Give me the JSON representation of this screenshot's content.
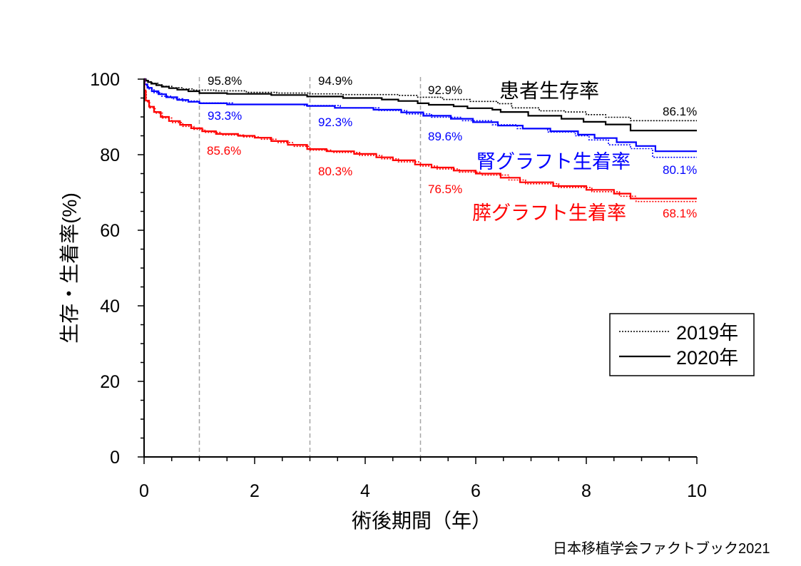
{
  "source": "日本移植学会ファクトブック2021",
  "chart_data": {
    "type": "line",
    "xlabel": "術後期間（年）",
    "ylabel": "生存・生着率(%)",
    "xlim": [
      0,
      10
    ],
    "ylim": [
      0,
      100
    ],
    "xticks": [
      0,
      2,
      4,
      6,
      8,
      10
    ],
    "yticks": [
      0,
      20,
      40,
      60,
      80,
      100
    ],
    "reference_lines_x": [
      1,
      3,
      5
    ],
    "legend": [
      "2019年",
      "2020年"
    ],
    "legend_position": "lower-right",
    "groups": [
      {
        "name": "患者生存率",
        "color": "#000000",
        "annotations": [
          {
            "x": 1,
            "label": "95.8%"
          },
          {
            "x": 3,
            "label": "94.9%"
          },
          {
            "x": 5,
            "label": "92.9%"
          },
          {
            "x": 10,
            "label": "86.1%"
          }
        ],
        "series": [
          {
            "points": [
              [
                0,
                100
              ],
              [
                0.03,
                99.7
              ],
              [
                0.08,
                99.3
              ],
              [
                0.15,
                98.9
              ],
              [
                0.25,
                98.5
              ],
              [
                0.35,
                98.1
              ],
              [
                0.5,
                97.7
              ],
              [
                0.7,
                97.4
              ],
              [
                0.9,
                97.1
              ],
              [
                1.3,
                96.9
              ],
              [
                1.85,
                96.5
              ],
              [
                2.4,
                96.3
              ],
              [
                3.0,
                96.1
              ],
              [
                3.6,
                95.9
              ],
              [
                4.6,
                95.7
              ],
              [
                4.95,
                95.2
              ],
              [
                5.4,
                94.6
              ],
              [
                5.9,
                94.1
              ],
              [
                6.4,
                93.5
              ],
              [
                6.65,
                92.4
              ],
              [
                7.15,
                91.6
              ],
              [
                7.6,
                91.3
              ],
              [
                8.0,
                90.6
              ],
              [
                8.35,
                89.9
              ],
              [
                8.8,
                89.0
              ],
              [
                10,
                89.0
              ]
            ]
          },
          {
            "points": [
              [
                0,
                100
              ],
              [
                0.03,
                99.6
              ],
              [
                0.07,
                99.2
              ],
              [
                0.13,
                98.8
              ],
              [
                0.22,
                98.4
              ],
              [
                0.32,
                98.0
              ],
              [
                0.45,
                97.6
              ],
              [
                0.6,
                97.2
              ],
              [
                0.8,
                96.8
              ],
              [
                1.0,
                96.3
              ],
              [
                1.5,
                96.1
              ],
              [
                2.3,
                95.8
              ],
              [
                2.95,
                95.4
              ],
              [
                3.6,
                95.0
              ],
              [
                4.3,
                94.6
              ],
              [
                4.6,
                94.2
              ],
              [
                4.95,
                93.6
              ],
              [
                5.15,
                93.2
              ],
              [
                5.6,
                92.8
              ],
              [
                5.85,
                92.3
              ],
              [
                6.3,
                91.9
              ],
              [
                6.45,
                91.3
              ],
              [
                6.95,
                90.3
              ],
              [
                7.55,
                89.5
              ],
              [
                7.95,
                88.7
              ],
              [
                8.35,
                88.0
              ],
              [
                8.8,
                86.4
              ],
              [
                10,
                86.4
              ]
            ]
          }
        ]
      },
      {
        "name": "腎グラフト生着率",
        "color": "#0000ff",
        "annotations": [
          {
            "x": 1,
            "label": "93.3%"
          },
          {
            "x": 3,
            "label": "92.3%"
          },
          {
            "x": 5,
            "label": "89.6%"
          },
          {
            "x": 10,
            "label": "80.1%"
          }
        ],
        "series": [
          {
            "points": [
              [
                0,
                100
              ],
              [
                0.02,
                98.3
              ],
              [
                0.08,
                97.4
              ],
              [
                0.18,
                96.4
              ],
              [
                0.32,
                95.5
              ],
              [
                0.5,
                94.8
              ],
              [
                0.7,
                94.2
              ],
              [
                1.0,
                93.7
              ],
              [
                1.6,
                93.3
              ],
              [
                2.9,
                93.0
              ],
              [
                3.55,
                92.4
              ],
              [
                4.25,
                91.7
              ],
              [
                4.75,
                90.8
              ],
              [
                5.2,
                89.9
              ],
              [
                5.75,
                89.0
              ],
              [
                6.3,
                87.9
              ],
              [
                6.75,
                86.9
              ],
              [
                7.3,
                86.0
              ],
              [
                7.8,
                85.0
              ],
              [
                8.05,
                83.9
              ],
              [
                8.4,
                82.6
              ],
              [
                8.8,
                81.6
              ],
              [
                9.2,
                79.3
              ],
              [
                10,
                79.3
              ]
            ]
          },
          {
            "points": [
              [
                0,
                100
              ],
              [
                0.01,
                98.6
              ],
              [
                0.06,
                97.7
              ],
              [
                0.14,
                96.8
              ],
              [
                0.26,
                96.0
              ],
              [
                0.4,
                95.2
              ],
              [
                0.6,
                94.5
              ],
              [
                0.8,
                94.0
              ],
              [
                1.0,
                93.6
              ],
              [
                1.5,
                93.3
              ],
              [
                2.95,
                92.9
              ],
              [
                3.45,
                92.4
              ],
              [
                4.15,
                91.9
              ],
              [
                4.65,
                91.2
              ],
              [
                5.05,
                90.3
              ],
              [
                5.55,
                89.5
              ],
              [
                5.95,
                88.6
              ],
              [
                6.4,
                87.7
              ],
              [
                6.85,
                86.9
              ],
              [
                7.35,
                86.2
              ],
              [
                7.85,
                85.3
              ],
              [
                8.15,
                84.4
              ],
              [
                8.55,
                83.3
              ],
              [
                8.9,
                82.3
              ],
              [
                9.25,
                80.9
              ],
              [
                10,
                80.9
              ]
            ]
          }
        ]
      },
      {
        "name": "膵グラフト生着率",
        "color": "#ff0000",
        "annotations": [
          {
            "x": 1,
            "label": "85.6%"
          },
          {
            "x": 3,
            "label": "80.3%"
          },
          {
            "x": 5,
            "label": "76.5%"
          },
          {
            "x": 10,
            "label": "68.1%"
          }
        ],
        "series": [
          {
            "points": [
              [
                0,
                100
              ],
              [
                0.005,
                96.6
              ],
              [
                0.04,
                94.0
              ],
              [
                0.1,
                92.4
              ],
              [
                0.2,
                91.0
              ],
              [
                0.33,
                89.7
              ],
              [
                0.5,
                88.5
              ],
              [
                0.7,
                87.5
              ],
              [
                0.9,
                86.7
              ],
              [
                1.1,
                85.9
              ],
              [
                1.4,
                85.2
              ],
              [
                1.8,
                84.7
              ],
              [
                2.1,
                84.1
              ],
              [
                2.4,
                83.2
              ],
              [
                2.7,
                82.2
              ],
              [
                3.0,
                81.2
              ],
              [
                3.4,
                80.6
              ],
              [
                3.9,
                79.8
              ],
              [
                4.3,
                78.9
              ],
              [
                4.6,
                78.1
              ],
              [
                5.0,
                77.0
              ],
              [
                5.3,
                76.2
              ],
              [
                5.7,
                75.4
              ],
              [
                6.1,
                74.6
              ],
              [
                6.6,
                73.3
              ],
              [
                6.9,
                72.3
              ],
              [
                7.5,
                71.3
              ],
              [
                8.1,
                70.2
              ],
              [
                8.6,
                69.0
              ],
              [
                8.9,
                67.6
              ],
              [
                10,
                67.6
              ]
            ]
          },
          {
            "points": [
              [
                0,
                100
              ],
              [
                0.005,
                97.0
              ],
              [
                0.03,
                94.3
              ],
              [
                0.09,
                92.7
              ],
              [
                0.18,
                91.3
              ],
              [
                0.3,
                90.0
              ],
              [
                0.45,
                88.9
              ],
              [
                0.65,
                87.9
              ],
              [
                0.85,
                87.0
              ],
              [
                1.05,
                86.2
              ],
              [
                1.3,
                85.5
              ],
              [
                1.7,
                85.0
              ],
              [
                2.0,
                84.5
              ],
              [
                2.3,
                83.6
              ],
              [
                2.6,
                82.6
              ],
              [
                2.95,
                81.5
              ],
              [
                3.3,
                80.9
              ],
              [
                3.8,
                80.2
              ],
              [
                4.2,
                79.3
              ],
              [
                4.5,
                78.5
              ],
              [
                4.9,
                77.4
              ],
              [
                5.2,
                76.6
              ],
              [
                5.6,
                75.8
              ],
              [
                6.0,
                75.0
              ],
              [
                6.45,
                73.9
              ],
              [
                6.8,
                72.7
              ],
              [
                7.4,
                71.7
              ],
              [
                8.0,
                70.7
              ],
              [
                8.5,
                69.7
              ],
              [
                8.8,
                68.4
              ],
              [
                10,
                68.4
              ]
            ]
          }
        ]
      }
    ]
  }
}
